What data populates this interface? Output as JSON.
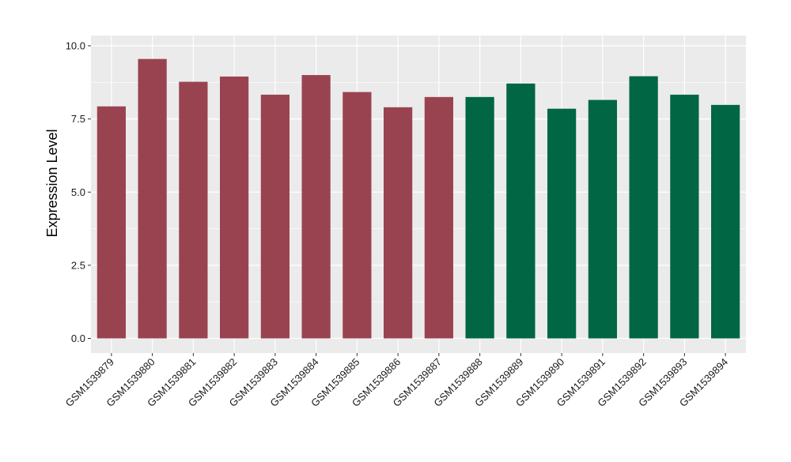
{
  "chart_data": {
    "type": "bar",
    "ylabel": "Expression Level",
    "xlabel": "",
    "ylim": [
      0,
      10
    ],
    "yticks": [
      "0.0",
      "2.5",
      "5.0",
      "7.5",
      "10.0"
    ],
    "ytick_values": [
      0,
      2.5,
      5.0,
      7.5,
      10.0
    ],
    "grid": true,
    "categories": [
      "GSM1539879",
      "GSM1539880",
      "GSM1539881",
      "GSM1539882",
      "GSM1539883",
      "GSM1539884",
      "GSM1539885",
      "GSM1539886",
      "GSM1539887",
      "GSM1539888",
      "GSM1539889",
      "GSM1539890",
      "GSM1539891",
      "GSM1539892",
      "GSM1539893",
      "GSM1539894"
    ],
    "values": [
      7.93,
      9.55,
      8.77,
      8.95,
      8.33,
      9.0,
      8.42,
      7.9,
      8.25,
      8.25,
      8.71,
      7.85,
      8.15,
      8.96,
      8.33,
      7.98
    ],
    "bar_colors": [
      "#9a4350",
      "#9a4350",
      "#9a4350",
      "#9a4350",
      "#9a4350",
      "#9a4350",
      "#9a4350",
      "#9a4350",
      "#9a4350",
      "#006644",
      "#006644",
      "#006644",
      "#006644",
      "#006644",
      "#006644",
      "#006644"
    ],
    "panel_background": "#ebebeb",
    "grid_color": "#ffffff"
  }
}
